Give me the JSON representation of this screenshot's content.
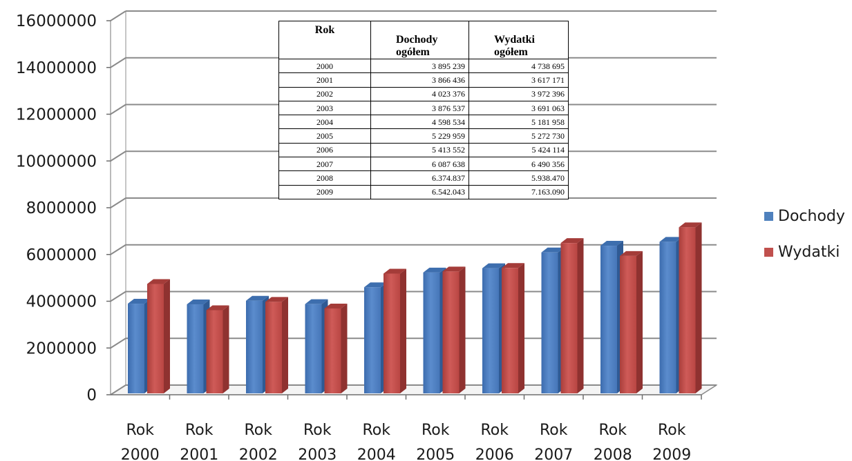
{
  "chart_data": {
    "type": "bar",
    "categories": [
      "Rok 2000",
      "Rok 2001",
      "Rok 2002",
      "Rok 2003",
      "Rok 2004",
      "Rok 2005",
      "Rok 2006",
      "Rok 2007",
      "Rok 2008",
      "Rok 2009"
    ],
    "series": [
      {
        "name": "Dochody",
        "color": "#4f81bd",
        "values": [
          3895239,
          3866436,
          4023376,
          3876537,
          4598534,
          5229959,
          5413552,
          6087638,
          6374837,
          6542043
        ]
      },
      {
        "name": "Wydatki",
        "color": "#c0504d",
        "values": [
          4738695,
          3617171,
          3972396,
          3691063,
          5181958,
          5272730,
          5424114,
          6490356,
          5938470,
          7163090
        ]
      }
    ],
    "ylim": [
      0,
      16000000
    ],
    "yticks": [
      "0",
      "2000000",
      "4000000",
      "6000000",
      "8000000",
      "10000000",
      "12000000",
      "14000000",
      "16000000"
    ],
    "grid": true,
    "legend_position": "right",
    "style": "3d-clustered-column"
  },
  "table": {
    "headers": [
      [
        "Rok"
      ],
      [
        "Dochody",
        "ogółem"
      ],
      [
        "Wydatki",
        "ogółem"
      ]
    ],
    "rows": [
      [
        "2000",
        "3 895 239",
        "4 738 695"
      ],
      [
        "2001",
        "3 866 436",
        "3 617 171"
      ],
      [
        "2002",
        "4 023 376",
        "3 972 396"
      ],
      [
        "2003",
        "3 876 537",
        "3 691 063"
      ],
      [
        "2004",
        "4 598 534",
        "5 181 958"
      ],
      [
        "2005",
        "5 229 959",
        "5 272 730"
      ],
      [
        "2006",
        "5 413 552",
        "5 424 114"
      ],
      [
        "2007",
        "6 087 638",
        "6 490 356"
      ],
      [
        "2008",
        "6.374.837",
        "5.938.470"
      ],
      [
        "2009",
        "6.542.043",
        "7.163.090"
      ]
    ]
  }
}
